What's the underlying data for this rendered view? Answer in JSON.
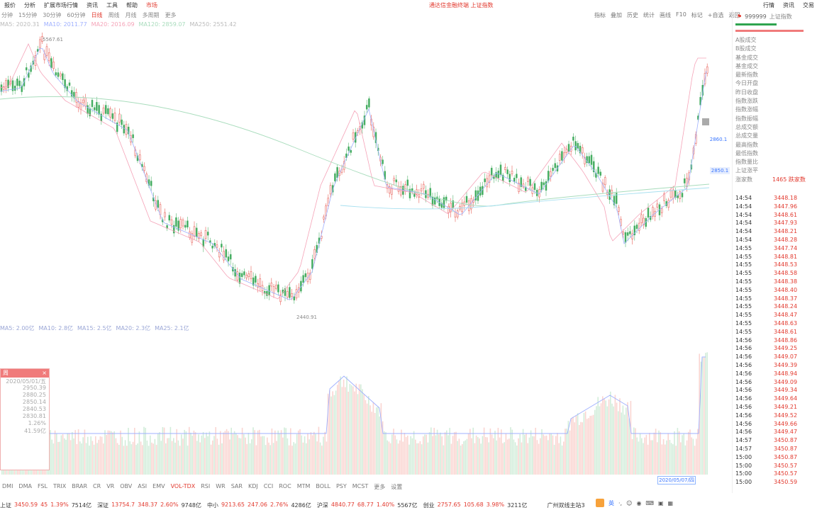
{
  "menubar": {
    "items": [
      "报价",
      "分析",
      "扩展市场行情",
      "资讯",
      "工具",
      "帮助"
    ],
    "highlight": "市场",
    "center_text": "通达信金融终端 上证指数",
    "right_items": [
      "行情",
      "资讯",
      "交易"
    ]
  },
  "periods": [
    "分钟",
    "15分钟",
    "30分钟",
    "60分钟",
    "日线",
    "周线",
    "月线",
    "多周期",
    "更多"
  ],
  "toolbar_items": [
    "指标",
    "叠加",
    "历史",
    "统计",
    "画线",
    "F10",
    "标记",
    "+自选",
    "返回"
  ],
  "ma_legend": [
    "MA5: 2020.31",
    "MA10: 2011.77",
    "MA20: 2016.09",
    "MA120: 2859.07",
    "MA250: 2551.42"
  ],
  "price_annotations": {
    "high": "5567.61",
    "low": "2440.91"
  },
  "vol_legend": [
    "MA5: 2.00亿",
    "MA10: 2.8亿",
    "MA15: 2.5亿",
    "MA20: 2.3亿",
    "MA25: 2.1亿"
  ],
  "popup": {
    "title": "周",
    "rows": [
      "2020/05/01/五",
      "2950.39",
      "2880.25",
      "2850.14",
      "2840.53",
      "2830.81",
      "1.26%",
      "41.59亿"
    ]
  },
  "bottom_indicators": [
    "DMI",
    "DMA",
    "FSL",
    "TRIX",
    "BRAR",
    "CR",
    "VR",
    "OBV",
    "ASI",
    "EMV",
    "VOL-TDX",
    "RSI",
    "WR",
    "SAR",
    "KDJ",
    "CCI",
    "ROC",
    "MTM",
    "BOLL",
    "PSY",
    "MCST",
    "更多",
    "设置"
  ],
  "date_box": "2020/05/07/四",
  "price_box": "2850.1",
  "mprice_box": "2860.1",
  "right_panel": {
    "code": "999999",
    "name": "上证指数",
    "stats": [
      "A股成交",
      "B股成交",
      "基金成交",
      "基金成交",
      "最新指数",
      "今日开盘",
      "昨日收盘",
      "指数涨跌",
      "指数涨幅",
      "指数振幅",
      "总成交额",
      "总成交量",
      "最高指数",
      "最低指数",
      "指数量比",
      "上证涨平",
      "涨家数"
    ],
    "last_stat_value": "1465 跌家数",
    "ticks": [
      {
        "t": "14:54",
        "p": "3448.18"
      },
      {
        "t": "14:54",
        "p": "3447.96"
      },
      {
        "t": "14:54",
        "p": "3448.61"
      },
      {
        "t": "14:54",
        "p": "3447.93"
      },
      {
        "t": "14:54",
        "p": "3448.21"
      },
      {
        "t": "14:54",
        "p": "3448.28"
      },
      {
        "t": "14:55",
        "p": "3447.74"
      },
      {
        "t": "14:55",
        "p": "3448.81"
      },
      {
        "t": "14:55",
        "p": "3448.53"
      },
      {
        "t": "14:55",
        "p": "3448.58"
      },
      {
        "t": "14:55",
        "p": "3448.38"
      },
      {
        "t": "14:55",
        "p": "3448.40"
      },
      {
        "t": "14:55",
        "p": "3448.37"
      },
      {
        "t": "14:55",
        "p": "3448.24"
      },
      {
        "t": "14:55",
        "p": "3448.47"
      },
      {
        "t": "14:55",
        "p": "3448.63"
      },
      {
        "t": "14:55",
        "p": "3448.61"
      },
      {
        "t": "14:56",
        "p": "3448.86"
      },
      {
        "t": "14:56",
        "p": "3449.25"
      },
      {
        "t": "14:56",
        "p": "3449.07"
      },
      {
        "t": "14:56",
        "p": "3449.39"
      },
      {
        "t": "14:56",
        "p": "3448.94"
      },
      {
        "t": "14:56",
        "p": "3449.09"
      },
      {
        "t": "14:56",
        "p": "3449.34"
      },
      {
        "t": "14:56",
        "p": "3449.64"
      },
      {
        "t": "14:56",
        "p": "3449.21"
      },
      {
        "t": "14:56",
        "p": "3449.52"
      },
      {
        "t": "14:56",
        "p": "3449.66"
      },
      {
        "t": "14:56",
        "p": "3449.47"
      },
      {
        "t": "14:57",
        "p": "3450.87"
      },
      {
        "t": "14:57",
        "p": "3450.87"
      },
      {
        "t": "15:00",
        "p": "3450.87"
      },
      {
        "t": "15:00",
        "p": "3450.57"
      },
      {
        "t": "15:00",
        "p": "3450.57"
      },
      {
        "t": "15:00",
        "p": "3450.59"
      }
    ]
  },
  "statusbar": [
    {
      "name": "上证",
      "value": "3450.59",
      "chg": "45",
      "pct": "1.39%",
      "amt": "7514亿"
    },
    {
      "name": "深证",
      "value": "13754.7",
      "chg": "348.37",
      "pct": "2.60%",
      "amt": "9748亿"
    },
    {
      "name": "中小",
      "value": "9213.65",
      "chg": "247.06",
      "pct": "2.76%",
      "amt": "4286亿"
    },
    {
      "name": "沪深",
      "value": "4840.77",
      "chg": "68.77",
      "pct": "1.40%",
      "amt": "5567亿"
    },
    {
      "name": "创业",
      "value": "2757.65",
      "chg": "105.68",
      "pct": "3.98%",
      "amt": "3211亿"
    }
  ],
  "status_right": "广州双线主站3",
  "colors": {
    "up": "#e23a2f",
    "down": "#2fa44f",
    "ma_blue": "#7fa8ff",
    "ma_green": "#a8dcbc"
  }
}
